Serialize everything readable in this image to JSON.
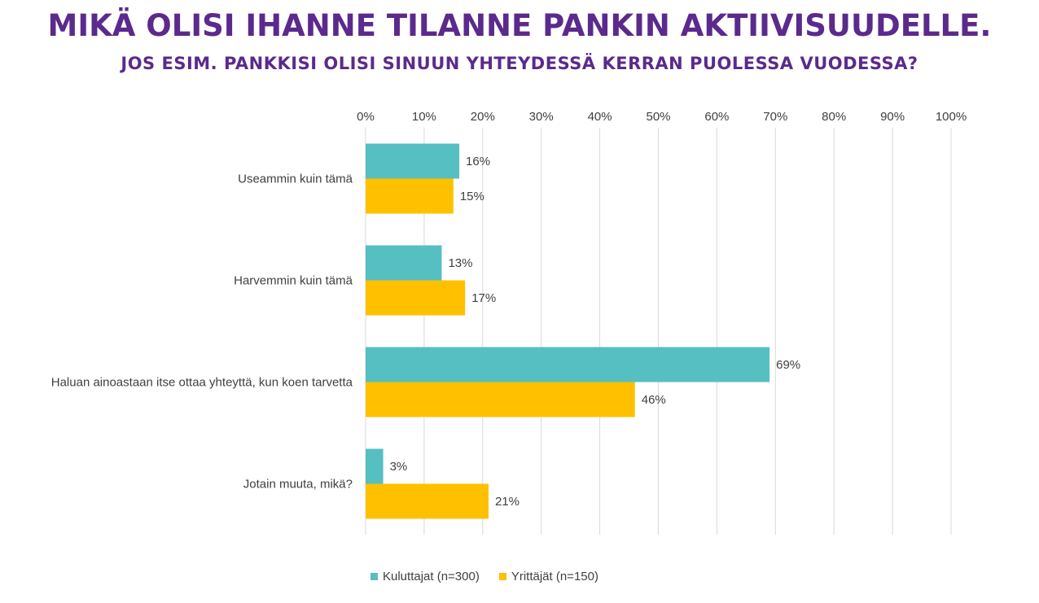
{
  "title": "MIKÄ OLISI IHANNE TILANNE PANKIN AKTIIVISUUDELLE.",
  "subtitle": "JOS ESIM. PANKKISI OLISI SINUUN YHTEYDESSÄ KERRAN PUOLESSA VUODESSA?",
  "colors": {
    "title": "#5b2a8c",
    "series1": "#56bfc1",
    "series2": "#ffc000",
    "grid": "#d9d9d9",
    "text": "#404040"
  },
  "chart_data": {
    "type": "bar",
    "orientation": "horizontal",
    "categories": [
      "Useammin kuin tämä",
      "Harvemmin kuin tämä",
      "Haluan ainoastaan itse ottaa yhteyttä, kun koen tarvetta",
      "Jotain muuta, mikä?"
    ],
    "series": [
      {
        "name": "Kuluttajat (n=300)",
        "values": [
          16,
          13,
          69,
          3
        ],
        "labels": [
          "16%",
          "13%",
          "69%",
          "3%"
        ]
      },
      {
        "name": "Yrittäjät (n=150)",
        "values": [
          15,
          17,
          46,
          21
        ],
        "labels": [
          "15%",
          "17%",
          "46%",
          "21%"
        ]
      }
    ],
    "xlim": [
      0,
      100
    ],
    "ticks": [
      "0%",
      "10%",
      "20%",
      "30%",
      "40%",
      "50%",
      "60%",
      "70%",
      "80%",
      "90%",
      "100%"
    ],
    "tick_position": "top",
    "grid": true,
    "legend_position": "bottom"
  }
}
